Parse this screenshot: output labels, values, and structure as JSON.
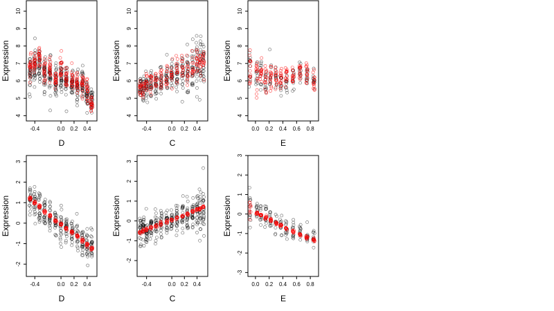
{
  "colors": {
    "black_points": "#000000",
    "red_points": "#ff0000",
    "background": "#ffffff"
  },
  "chart_data": [
    {
      "type": "scatter",
      "xlabel": "D",
      "ylabel": "Expression",
      "xlim": [
        -0.53,
        0.55
      ],
      "ylim": [
        3.7,
        10.6
      ],
      "xticks": [
        "-0.4",
        "0.0",
        "0.2",
        "0.4"
      ],
      "xtick_values": [
        -0.4,
        0.0,
        0.2,
        0.4
      ],
      "yticks": [
        "4",
        "5",
        "6",
        "7",
        "8",
        "9",
        "10"
      ],
      "ytick_values": [
        4,
        5,
        6,
        7,
        8,
        9,
        10
      ],
      "x_groups": [
        -0.47,
        -0.4,
        -0.33,
        -0.25,
        -0.17,
        -0.08,
        0.0,
        0.08,
        0.17,
        0.25,
        0.33,
        0.4,
        0.47
      ],
      "series": [
        {
          "color": "black",
          "center": [
            6.6,
            6.8,
            6.9,
            6.5,
            6.3,
            6.0,
            6.3,
            6.1,
            6.0,
            5.6,
            5.8,
            5.2,
            5.0
          ],
          "spread": [
            0.9,
            1.0,
            0.9,
            1.0,
            0.9,
            0.8,
            0.9,
            0.8,
            0.8,
            0.8,
            0.7,
            0.7,
            0.6
          ],
          "points_per_group": 30
        },
        {
          "color": "red",
          "center": [
            6.8,
            7.0,
            7.4,
            6.6,
            6.6,
            6.0,
            6.6,
            6.3,
            6.1,
            6.0,
            5.8,
            5.4,
            4.8
          ],
          "spread": [
            0.7,
            0.7,
            0.5,
            0.7,
            0.6,
            0.6,
            0.8,
            0.6,
            0.6,
            0.6,
            0.6,
            0.6,
            0.6
          ],
          "points_per_group": 18
        }
      ]
    },
    {
      "type": "scatter",
      "xlabel": "C",
      "ylabel": "Expression",
      "xlim": [
        -0.55,
        0.57
      ],
      "ylim": [
        3.7,
        10.6
      ],
      "xticks": [
        "-0.4",
        "0.0",
        "0.2",
        "0.4"
      ],
      "xtick_values": [
        -0.4,
        0.0,
        0.2,
        0.4
      ],
      "yticks": [
        "4",
        "5",
        "6",
        "7",
        "8",
        "9",
        "10"
      ],
      "ytick_values": [
        4,
        5,
        6,
        7,
        8,
        9,
        10
      ],
      "x_groups": [
        -0.5,
        -0.45,
        -0.4,
        -0.33,
        -0.25,
        -0.17,
        -0.08,
        0.0,
        0.08,
        0.17,
        0.25,
        0.33,
        0.4,
        0.45,
        0.5
      ],
      "series": [
        {
          "color": "black",
          "center": [
            5.6,
            5.6,
            5.7,
            5.8,
            5.9,
            6.0,
            6.1,
            6.3,
            6.4,
            6.5,
            6.6,
            6.8,
            6.7,
            6.9,
            7.0
          ],
          "spread": [
            0.8,
            0.8,
            0.8,
            0.7,
            0.7,
            0.7,
            0.8,
            0.8,
            0.8,
            0.8,
            0.9,
            1.0,
            1.1,
            1.2,
            1.2
          ],
          "points_per_group": 22
        },
        {
          "color": "red",
          "center": [
            5.5,
            5.6,
            5.8,
            5.9,
            6.0,
            6.1,
            6.2,
            6.4,
            6.5,
            6.6,
            6.7,
            6.9,
            7.0,
            7.1,
            7.2
          ],
          "spread": [
            0.6,
            0.6,
            0.6,
            0.6,
            0.6,
            0.6,
            0.6,
            0.7,
            0.7,
            0.7,
            0.8,
            0.8,
            0.8,
            0.8,
            0.8
          ],
          "points_per_group": 12
        }
      ]
    },
    {
      "type": "scatter",
      "xlabel": "E",
      "ylabel": "Expression",
      "xlim": [
        -0.11,
        0.92
      ],
      "ylim": [
        3.7,
        10.6
      ],
      "xticks": [
        "0.0",
        "0.2",
        "0.4",
        "0.6",
        "0.8"
      ],
      "xtick_values": [
        0.0,
        0.2,
        0.4,
        0.6,
        0.8
      ],
      "yticks": [
        "4",
        "5",
        "6",
        "7",
        "8",
        "9",
        "10"
      ],
      "ytick_values": [
        4,
        5,
        6,
        7,
        8,
        9,
        10
      ],
      "x_groups": [
        -0.08,
        0.02,
        0.08,
        0.15,
        0.22,
        0.3,
        0.37,
        0.45,
        0.55,
        0.65,
        0.75,
        0.85
      ],
      "series": [
        {
          "color": "black",
          "center": [
            6.5,
            6.3,
            6.4,
            6.0,
            6.1,
            6.3,
            5.7,
            5.9,
            6.1,
            6.5,
            6.3,
            6.0
          ],
          "spread": [
            1.2,
            0.9,
            1.0,
            0.8,
            0.9,
            0.8,
            0.8,
            0.7,
            0.7,
            0.7,
            0.6,
            0.6
          ],
          "points_per_group": 12
        },
        {
          "color": "red",
          "center": [
            6.5,
            6.4,
            6.5,
            6.2,
            6.3,
            6.4,
            6.1,
            6.2,
            6.3,
            6.6,
            6.4,
            6.1
          ],
          "spread": [
            1.0,
            0.8,
            0.8,
            0.7,
            0.7,
            0.8,
            0.8,
            0.6,
            0.6,
            0.6,
            0.6,
            0.6
          ],
          "points_per_group": 14
        }
      ]
    },
    {
      "type": "scatter",
      "xlabel": "D",
      "ylabel": "Expression",
      "xlim": [
        -0.53,
        0.55
      ],
      "ylim": [
        -2.6,
        3.3
      ],
      "xticks": [
        "-0.4",
        "0.0",
        "0.2",
        "0.4"
      ],
      "xtick_values": [
        -0.4,
        0.0,
        0.2,
        0.4
      ],
      "yticks": [
        "-2",
        "-1",
        "0",
        "1",
        "2",
        "3"
      ],
      "ytick_values": [
        -2,
        -1,
        0,
        1,
        2,
        3
      ],
      "x_groups": [
        -0.47,
        -0.4,
        -0.33,
        -0.25,
        -0.17,
        -0.08,
        0.0,
        0.08,
        0.17,
        0.25,
        0.33,
        0.4,
        0.47
      ],
      "series": [
        {
          "color": "black",
          "center": [
            1.1,
            1.0,
            0.8,
            0.5,
            0.3,
            0.1,
            -0.1,
            -0.2,
            -0.4,
            -0.6,
            -0.8,
            -1.0,
            -1.1
          ],
          "spread": [
            0.6,
            0.7,
            0.7,
            0.7,
            0.6,
            0.6,
            0.7,
            0.6,
            0.6,
            0.6,
            0.6,
            0.6,
            0.6
          ],
          "points_per_group": 22
        },
        {
          "color": "red",
          "center": [
            1.2,
            1.0,
            0.8,
            0.55,
            0.35,
            0.1,
            -0.05,
            -0.25,
            -0.45,
            -0.65,
            -0.85,
            -1.05,
            -1.25
          ],
          "spread": [
            0.08,
            0.08,
            0.08,
            0.08,
            0.08,
            0.08,
            0.08,
            0.08,
            0.08,
            0.08,
            0.08,
            0.08,
            0.08
          ],
          "points_per_group": 10
        }
      ]
    },
    {
      "type": "scatter",
      "xlabel": "C",
      "ylabel": "Expression",
      "xlim": [
        -0.55,
        0.57
      ],
      "ylim": [
        -2.8,
        3.3
      ],
      "xticks": [
        "-0.4",
        "0.0",
        "0.2",
        "0.4"
      ],
      "xtick_values": [
        -0.4,
        0.0,
        0.2,
        0.4
      ],
      "yticks": [
        "-2",
        "-1",
        "0",
        "1",
        "2",
        "3"
      ],
      "ytick_values": [
        -2,
        -1,
        0,
        1,
        2,
        3
      ],
      "x_groups": [
        -0.5,
        -0.45,
        -0.4,
        -0.33,
        -0.25,
        -0.17,
        -0.08,
        0.0,
        0.08,
        0.17,
        0.25,
        0.33,
        0.4,
        0.45,
        0.5
      ],
      "series": [
        {
          "color": "black",
          "center": [
            -0.5,
            -0.4,
            -0.4,
            -0.3,
            -0.2,
            -0.1,
            0.0,
            0.1,
            0.1,
            0.2,
            0.3,
            0.4,
            0.5,
            0.6,
            0.6
          ],
          "spread": [
            0.6,
            0.6,
            0.7,
            0.6,
            0.6,
            0.6,
            0.6,
            0.6,
            0.7,
            0.8,
            0.8,
            0.9,
            0.9,
            1.0,
            1.0
          ],
          "points_per_group": 22
        },
        {
          "color": "red",
          "center": [
            -0.6,
            -0.5,
            -0.45,
            -0.35,
            -0.25,
            -0.15,
            -0.05,
            0.05,
            0.15,
            0.25,
            0.35,
            0.45,
            0.55,
            0.6,
            0.7
          ],
          "spread": [
            0.08,
            0.08,
            0.08,
            0.08,
            0.08,
            0.08,
            0.08,
            0.08,
            0.08,
            0.08,
            0.08,
            0.08,
            0.08,
            0.08,
            0.08
          ],
          "points_per_group": 8
        }
      ]
    },
    {
      "type": "scatter",
      "xlabel": "E",
      "ylabel": "Expression",
      "xlim": [
        -0.11,
        0.92
      ],
      "ylim": [
        -3.2,
        3.0
      ],
      "xticks": [
        "0.0",
        "0.2",
        "0.4",
        "0.6",
        "0.8"
      ],
      "xtick_values": [
        0.0,
        0.2,
        0.4,
        0.6,
        0.8
      ],
      "yticks": [
        "-3",
        "-2",
        "-1",
        "0",
        "1",
        "2",
        "3"
      ],
      "ytick_values": [
        -3,
        -2,
        -1,
        0,
        1,
        2,
        3
      ],
      "x_groups": [
        -0.08,
        0.02,
        0.08,
        0.15,
        0.22,
        0.3,
        0.37,
        0.45,
        0.55,
        0.65,
        0.75,
        0.85
      ],
      "series": [
        {
          "color": "black",
          "center": [
            0.3,
            0.1,
            0.0,
            -0.1,
            -0.3,
            -0.5,
            -0.6,
            -0.8,
            -0.9,
            -1.0,
            -1.2,
            -1.3
          ],
          "spread": [
            1.0,
            0.6,
            0.5,
            0.5,
            0.5,
            0.5,
            0.5,
            0.5,
            0.5,
            0.5,
            0.5,
            0.5
          ],
          "points_per_group": 12
        },
        {
          "color": "red",
          "center": [
            0.3,
            0.05,
            -0.05,
            -0.15,
            -0.3,
            -0.45,
            -0.6,
            -0.75,
            -0.9,
            -1.05,
            -1.2,
            -1.35
          ],
          "spread": [
            0.5,
            0.08,
            0.08,
            0.08,
            0.08,
            0.08,
            0.08,
            0.08,
            0.08,
            0.08,
            0.08,
            0.08
          ],
          "points_per_group": 10
        }
      ]
    }
  ]
}
